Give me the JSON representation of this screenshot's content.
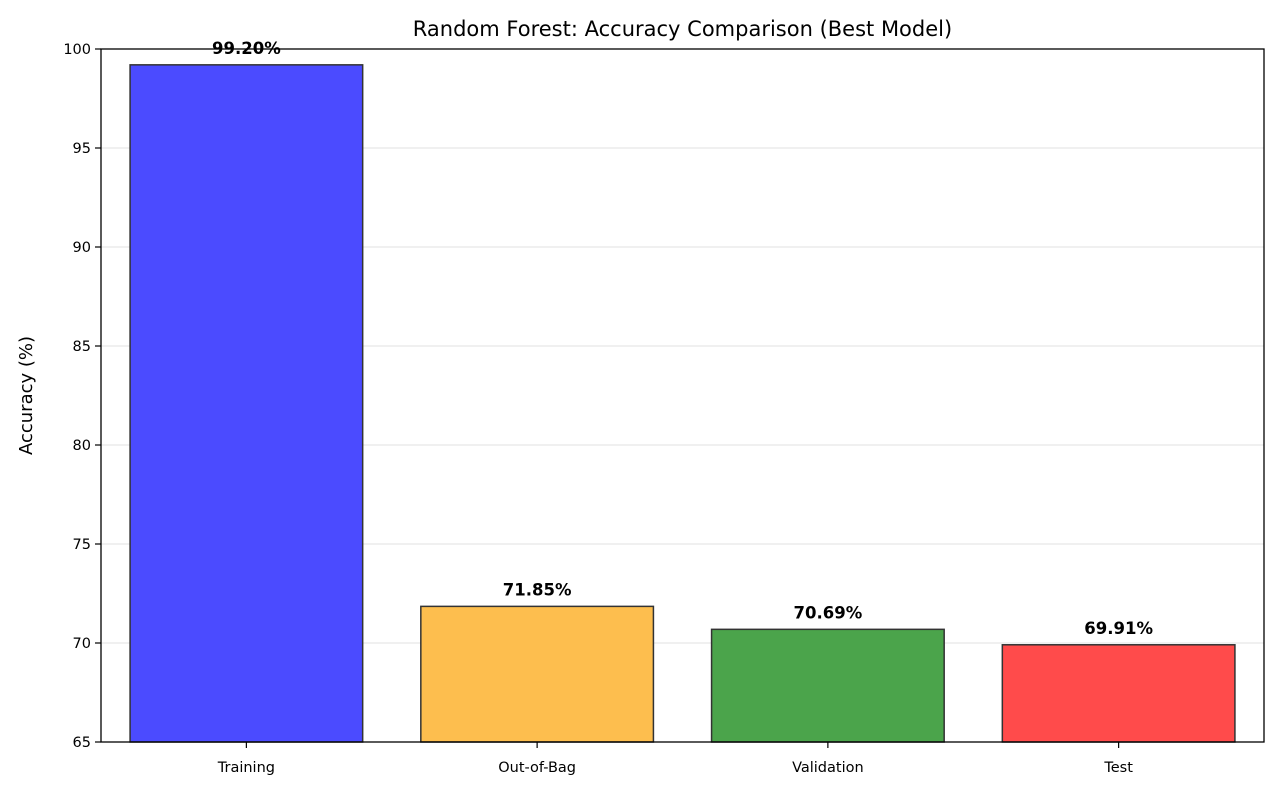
{
  "chart_data": {
    "type": "bar",
    "title": "Random Forest: Accuracy Comparison (Best Model)",
    "xlabel": "",
    "ylabel": "Accuracy (%)",
    "categories": [
      "Training",
      "Out-of-Bag",
      "Validation",
      "Test"
    ],
    "values": [
      99.2,
      71.85,
      70.69,
      69.91
    ],
    "value_labels": [
      "99.20%",
      "71.85%",
      "70.69%",
      "69.91%"
    ],
    "colors": [
      "#4b4bff",
      "#fdbe4e",
      "#4ba44b",
      "#ff4b4b"
    ],
    "edge_color": "#333333",
    "ylim": [
      65,
      100
    ],
    "yticks": [
      65,
      70,
      75,
      80,
      85,
      90,
      95,
      100
    ],
    "ytick_labels": [
      "65",
      "70",
      "75",
      "80",
      "85",
      "90",
      "95",
      "100"
    ],
    "grid": "y",
    "legend": "none"
  }
}
